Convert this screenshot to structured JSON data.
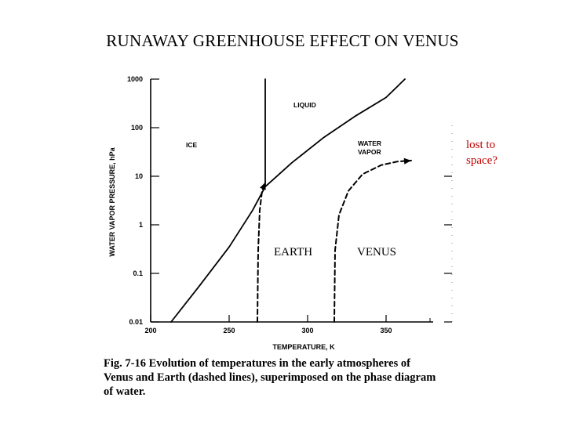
{
  "slide": {
    "title": "RUNAWAY GREENHOUSE EFFECT ON VENUS",
    "caption": "Fig. 7-16  Evolution of temperatures in the early atmospheres of Venus and Earth (dashed lines), superimposed on the phase diagram of water."
  },
  "colors": {
    "line": "#000000",
    "annotation_red": "#c00000"
  },
  "chart_data": {
    "type": "line",
    "xlabel": "TEMPERATURE, K",
    "ylabel": "WATER VAPOR PRESSURE, hPa",
    "xlim": [
      200,
      380
    ],
    "ylim": [
      0.01,
      1000
    ],
    "yscale": "log",
    "x_ticks": [
      "200",
      "250",
      "300",
      "350"
    ],
    "y_ticks": [
      "0.01",
      "0.1",
      "1",
      "10",
      "100",
      "1000"
    ],
    "grid": false,
    "regions": [
      "ICE",
      "LIQUID",
      "WATER VAPOR"
    ],
    "annotations": [
      "EARTH",
      "VENUS",
      "lost to space?"
    ],
    "series": [
      {
        "style": "solid",
        "x": [
          213,
          230,
          250,
          265,
          273,
          290,
          310,
          330,
          350,
          362
        ],
        "y": [
          0.01,
          0.05,
          0.35,
          2.0,
          6.1,
          19,
          62,
          170,
          420,
          1000
        ]
      },
      {
        "style": "solid",
        "x": [
          273,
          273
        ],
        "y": [
          6.1,
          1000
        ]
      },
      {
        "style": "dashed",
        "x": [
          268,
          268.5,
          269.5,
          271,
          273
        ],
        "y": [
          0.01,
          0.3,
          2.0,
          5.0,
          7.5
        ]
      },
      {
        "style": "dashed",
        "x": [
          317,
          317.5,
          320,
          326,
          335,
          347,
          357,
          366
        ],
        "y": [
          0.01,
          0.3,
          1.6,
          5.0,
          11,
          17,
          20,
          21
        ]
      }
    ]
  }
}
